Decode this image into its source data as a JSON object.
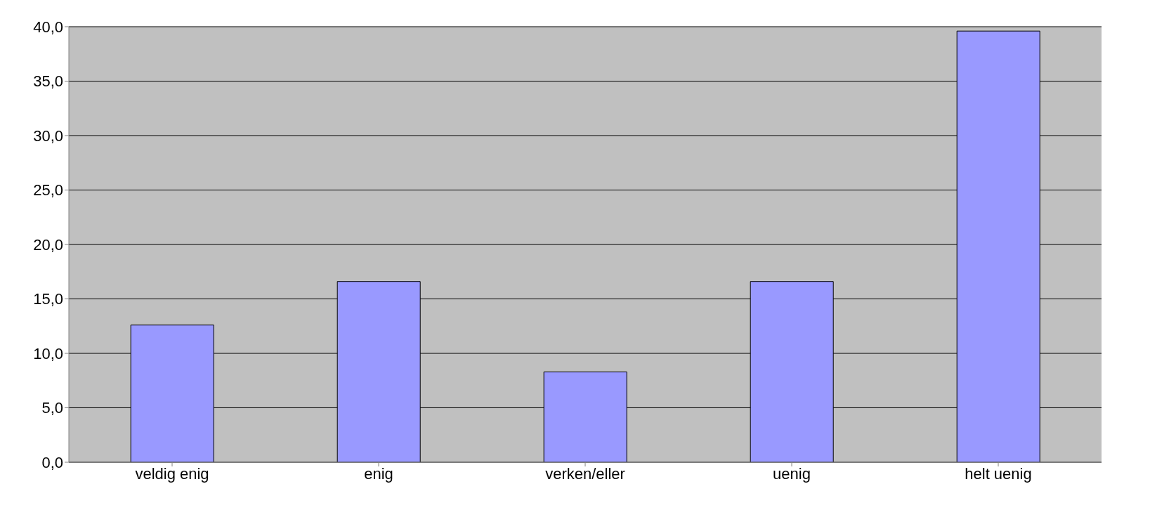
{
  "chart_data": {
    "type": "bar",
    "categories": [
      "veldig enig",
      "enig",
      "verken/eller",
      "uenig",
      "helt uenig"
    ],
    "values": [
      12.6,
      16.6,
      8.3,
      16.6,
      39.6
    ],
    "color": "#9999ff",
    "ylim": [
      0,
      40
    ],
    "yticks": [
      {
        "value": 0,
        "label": "0,0"
      },
      {
        "value": 5,
        "label": "5,0"
      },
      {
        "value": 10,
        "label": "10,0"
      },
      {
        "value": 15,
        "label": "15,0"
      },
      {
        "value": 20,
        "label": "20,0"
      },
      {
        "value": 25,
        "label": "25,0"
      },
      {
        "value": 30,
        "label": "30,0"
      },
      {
        "value": 35,
        "label": "35,0"
      },
      {
        "value": 40,
        "label": "40,0"
      }
    ],
    "grid": "y",
    "legend": false
  }
}
